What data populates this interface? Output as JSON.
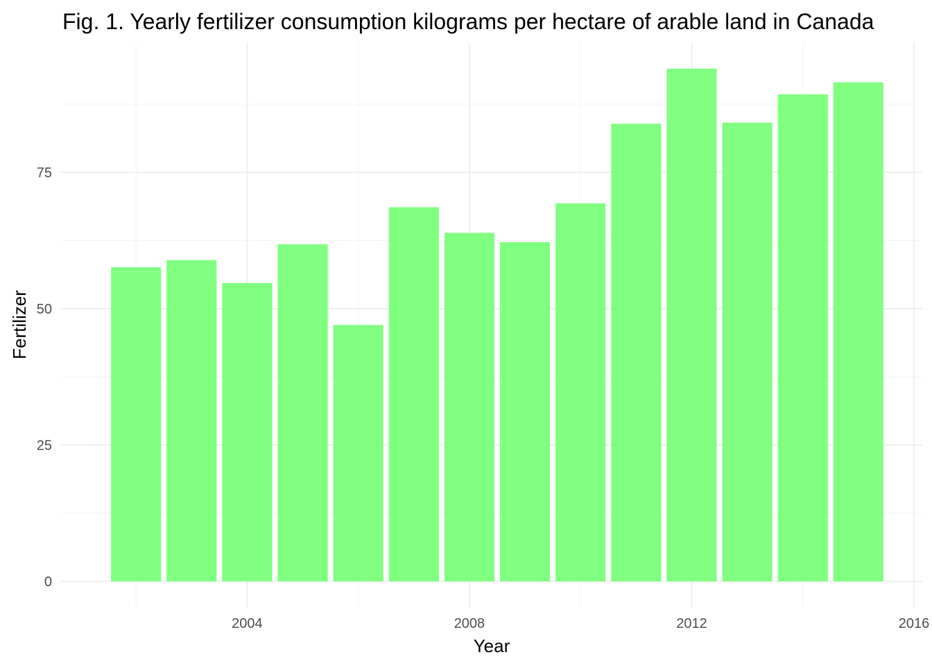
{
  "chart_data": {
    "type": "bar",
    "title": "Fig. 1. Yearly fertilizer consumption kilograms per hectare of arable land in Canada",
    "xlabel": "Year",
    "ylabel": "Fertilizer",
    "x": [
      2002,
      2003,
      2004,
      2005,
      2006,
      2007,
      2008,
      2009,
      2010,
      2011,
      2012,
      2013,
      2014,
      2015
    ],
    "values": [
      57.6,
      58.9,
      54.7,
      61.8,
      47.0,
      68.6,
      63.9,
      62.2,
      69.3,
      83.9,
      94.0,
      84.1,
      89.3,
      91.5
    ],
    "xlim": [
      2000.65,
      2016.15
    ],
    "ylim": [
      -4.7,
      98.7
    ],
    "x_ticks": [
      2004,
      2008,
      2012,
      2016
    ],
    "x_minor_ticks": [
      2002,
      2006,
      2010,
      2014
    ],
    "y_ticks": [
      0,
      25,
      50,
      75
    ],
    "y_minor_ticks": [
      12.5,
      37.5,
      62.5,
      87.5
    ],
    "bar_color": "#80ff80",
    "grid": true,
    "legend": "none"
  }
}
